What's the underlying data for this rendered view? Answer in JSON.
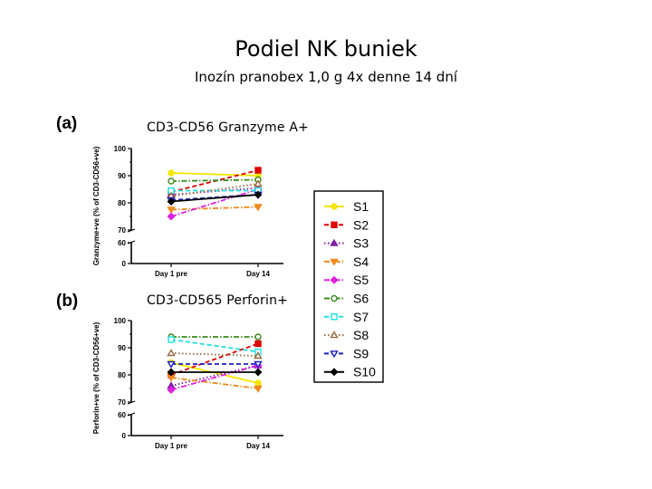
{
  "header": {
    "title": "Podiel NK buniek",
    "subtitle": "Inozín pranobex 1,0 g 4x denne  14 dní"
  },
  "legend": [
    "S1",
    "S2",
    "S3",
    "S4",
    "S5",
    "S6",
    "S7",
    "S8",
    "S9",
    "S10"
  ],
  "series_style": {
    "S1": {
      "color": "#f5e600",
      "marker": "circle-filled",
      "dash": "solid"
    },
    "S2": {
      "color": "#e00000",
      "marker": "square-filled",
      "dash": "dashed"
    },
    "S3": {
      "color": "#7a1fa0",
      "marker": "triangle-filled",
      "dash": "dotted"
    },
    "S4": {
      "color": "#f08a1c",
      "marker": "triangle-down-filled",
      "dash": "dashdot"
    },
    "S5": {
      "color": "#e020e0",
      "marker": "diamond-filled",
      "dash": "dashdot"
    },
    "S6": {
      "color": "#3a8a1a",
      "marker": "circle-open",
      "dash": "dashdot"
    },
    "S7": {
      "color": "#20e0e0",
      "marker": "square-open",
      "dash": "dashed"
    },
    "S8": {
      "color": "#9a6a40",
      "marker": "triangle-open",
      "dash": "dotted"
    },
    "S9": {
      "color": "#1a20c0",
      "marker": "triangle-down-open",
      "dash": "dashed"
    },
    "S10": {
      "color": "#000000",
      "marker": "diamond-filled",
      "dash": "solid"
    }
  },
  "chart_data": [
    {
      "type": "line",
      "panel_label": "(a)",
      "title": "CD3-CD56 Granzyme A+",
      "ylabel": "Granzyme+ve (% of CD3-CD56+ve)",
      "categories": [
        "Day 1 pre",
        "Day 14"
      ],
      "ylim_upper": [
        70,
        100
      ],
      "ylim_lower": [
        0,
        60
      ],
      "yticks": [
        100,
        90,
        80,
        70,
        60,
        0
      ],
      "series": [
        {
          "name": "S1",
          "values": [
            91,
            90
          ]
        },
        {
          "name": "S2",
          "values": [
            84,
            92
          ]
        },
        {
          "name": "S3",
          "values": [
            83,
            85.5
          ]
        },
        {
          "name": "S4",
          "values": [
            77.5,
            78.5
          ]
        },
        {
          "name": "S5",
          "values": [
            75,
            85
          ]
        },
        {
          "name": "S6",
          "values": [
            88,
            88.5
          ]
        },
        {
          "name": "S7",
          "values": [
            84.5,
            84.5
          ]
        },
        {
          "name": "S8",
          "values": [
            82.5,
            87
          ]
        },
        {
          "name": "S9",
          "values": [
            81,
            83
          ]
        },
        {
          "name": "S10",
          "values": [
            80.5,
            83
          ]
        }
      ]
    },
    {
      "type": "line",
      "panel_label": "(b)",
      "title": "CD3-CD565 Perforin+",
      "ylabel": "Perforin+ve (% of CD3-CD56+ve)",
      "categories": [
        "Day 1 pre",
        "Day 14"
      ],
      "ylim_upper": [
        70,
        100
      ],
      "ylim_lower": [
        0,
        60
      ],
      "yticks": [
        100,
        90,
        80,
        70,
        60,
        0
      ],
      "series": [
        {
          "name": "S1",
          "values": [
            84.5,
            77
          ]
        },
        {
          "name": "S2",
          "values": [
            80,
            91.5
          ]
        },
        {
          "name": "S3",
          "values": [
            76,
            83.5
          ]
        },
        {
          "name": "S4",
          "values": [
            79,
            75
          ]
        },
        {
          "name": "S5",
          "values": [
            74.5,
            83.5
          ]
        },
        {
          "name": "S6",
          "values": [
            94,
            94
          ]
        },
        {
          "name": "S7",
          "values": [
            93,
            88.5
          ]
        },
        {
          "name": "S8",
          "values": [
            88,
            87
          ]
        },
        {
          "name": "S9",
          "values": [
            84,
            84
          ]
        },
        {
          "name": "S10",
          "values": [
            81,
            81
          ]
        }
      ]
    }
  ]
}
